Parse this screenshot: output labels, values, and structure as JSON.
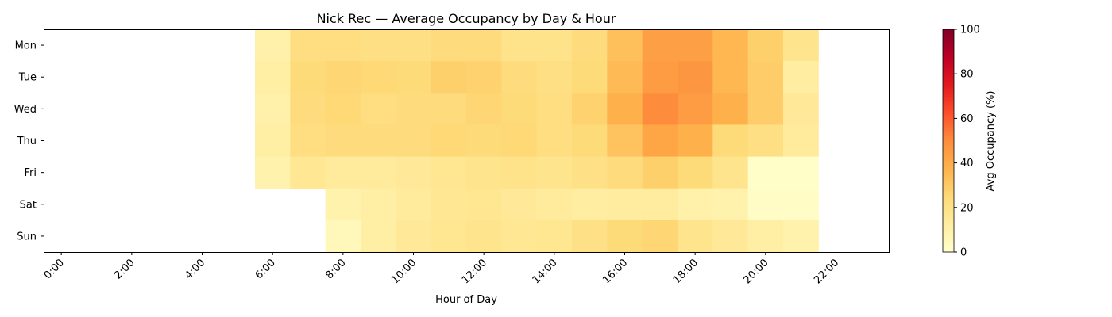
{
  "chart_data": {
    "type": "heatmap",
    "title": "Nick Rec — Average Occupancy by Day & Hour",
    "xlabel": "Hour of Day",
    "ylabel": "",
    "rows": [
      "Mon",
      "Tue",
      "Wed",
      "Thu",
      "Fri",
      "Sat",
      "Sun"
    ],
    "hours": [
      0,
      1,
      2,
      3,
      4,
      5,
      6,
      7,
      8,
      9,
      10,
      11,
      12,
      13,
      14,
      15,
      16,
      17,
      18,
      19,
      20,
      21,
      22,
      23
    ],
    "x_tick_labels": [
      "0:00",
      "2:00",
      "4:00",
      "6:00",
      "8:00",
      "10:00",
      "12:00",
      "14:00",
      "16:00",
      "18:00",
      "20:00",
      "22:00"
    ],
    "colormap": "YlOrRd",
    "vmin": 0,
    "vmax": 100,
    "colorbar_label": "Avg Occupancy (%)",
    "colorbar_ticks": [
      "0",
      "20",
      "40",
      "60",
      "80",
      "100"
    ],
    "values": [
      [
        null,
        null,
        null,
        null,
        null,
        null,
        10,
        22,
        22,
        21,
        21,
        23,
        23,
        19,
        19,
        23,
        33,
        44,
        44,
        36,
        28,
        18,
        null,
        null
      ],
      [
        null,
        null,
        null,
        null,
        null,
        null,
        11,
        24,
        26,
        25,
        24,
        28,
        27,
        23,
        21,
        24,
        35,
        45,
        47,
        36,
        29,
        12,
        null,
        null
      ],
      [
        null,
        null,
        null,
        null,
        null,
        null,
        10,
        23,
        25,
        22,
        23,
        23,
        26,
        24,
        22,
        27,
        38,
        50,
        45,
        38,
        29,
        15,
        null,
        null
      ],
      [
        null,
        null,
        null,
        null,
        null,
        null,
        11,
        22,
        23,
        23,
        23,
        25,
        24,
        25,
        22,
        24,
        32,
        42,
        38,
        24,
        21,
        14,
        null,
        null
      ],
      [
        null,
        null,
        null,
        null,
        null,
        null,
        9,
        16,
        14,
        14,
        15,
        17,
        18,
        19,
        18,
        20,
        23,
        28,
        24,
        18,
        1,
        1,
        null,
        null
      ],
      [
        null,
        null,
        null,
        null,
        null,
        null,
        null,
        null,
        9,
        11,
        14,
        16,
        17,
        15,
        14,
        12,
        13,
        13,
        10,
        9,
        2,
        2,
        null,
        null
      ],
      [
        null,
        null,
        null,
        null,
        null,
        null,
        null,
        null,
        5,
        11,
        15,
        17,
        18,
        16,
        17,
        20,
        24,
        26,
        18,
        15,
        11,
        9,
        null,
        null
      ]
    ]
  }
}
